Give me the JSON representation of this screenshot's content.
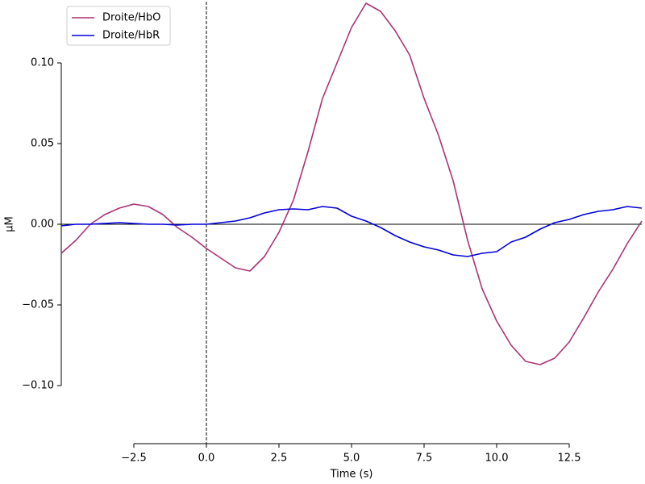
{
  "chart_data": {
    "type": "line",
    "x_label": "Time (s)",
    "y_label": "µM",
    "x": [
      -5,
      -4.5,
      -4,
      -3.5,
      -3,
      -2.5,
      -2,
      -1.5,
      -1,
      -0.5,
      0,
      0.5,
      1,
      1.5,
      2,
      2.5,
      3,
      3.5,
      4,
      4.5,
      5,
      5.5,
      6,
      6.5,
      7,
      7.5,
      8,
      8.5,
      9,
      9.5,
      10,
      10.5,
      11,
      11.5,
      12,
      12.5,
      13,
      13.5,
      14,
      14.5,
      15
    ],
    "series": [
      {
        "name": "Droite/HbO",
        "color": "#aa3377",
        "values": [
          -0.018,
          -0.01,
          0.0,
          0.006,
          0.01,
          0.0125,
          0.011,
          0.006,
          -0.002,
          -0.008,
          -0.015,
          -0.021,
          -0.027,
          -0.029,
          -0.02,
          -0.005,
          0.015,
          0.045,
          0.078,
          0.1,
          0.122,
          0.137,
          0.132,
          0.12,
          0.105,
          0.078,
          0.055,
          0.027,
          -0.01,
          -0.04,
          -0.06,
          -0.075,
          -0.085,
          -0.087,
          -0.083,
          -0.073,
          -0.058,
          -0.042,
          -0.028,
          -0.012,
          0.002
        ]
      },
      {
        "name": "Droite/HbR",
        "color": "#0000dd",
        "values": [
          -0.001,
          0.0,
          0.0,
          0.0005,
          0.001,
          0.0005,
          0.0,
          0.0,
          -0.0005,
          0.0,
          0.0,
          0.001,
          0.002,
          0.004,
          0.007,
          0.009,
          0.0095,
          0.009,
          0.011,
          0.01,
          0.005,
          0.002,
          -0.002,
          -0.007,
          -0.011,
          -0.014,
          -0.016,
          -0.019,
          -0.02,
          -0.018,
          -0.017,
          -0.011,
          -0.008,
          -0.003,
          0.001,
          0.003,
          0.006,
          0.008,
          0.009,
          0.011,
          0.01
        ]
      }
    ],
    "xlim": [
      -5,
      15
    ],
    "ylim": [
      -0.136,
      0.138
    ],
    "xticks": [
      {
        "value": -2.5,
        "label": "−2.5"
      },
      {
        "value": 0,
        "label": "0.0"
      },
      {
        "value": 2.5,
        "label": "2.5"
      },
      {
        "value": 5,
        "label": "5.0"
      },
      {
        "value": 7.5,
        "label": "7.5"
      },
      {
        "value": 10,
        "label": "10.0"
      },
      {
        "value": 12.5,
        "label": "12.5"
      }
    ],
    "yticks": [
      {
        "value": -0.1,
        "label": "−0.10"
      },
      {
        "value": -0.05,
        "label": "−0.05"
      },
      {
        "value": 0,
        "label": "0.00"
      },
      {
        "value": 0.05,
        "label": "0.05"
      },
      {
        "value": 0.1,
        "label": "0.10"
      }
    ],
    "vline": 0,
    "hline": 0,
    "legend": "upper left"
  }
}
